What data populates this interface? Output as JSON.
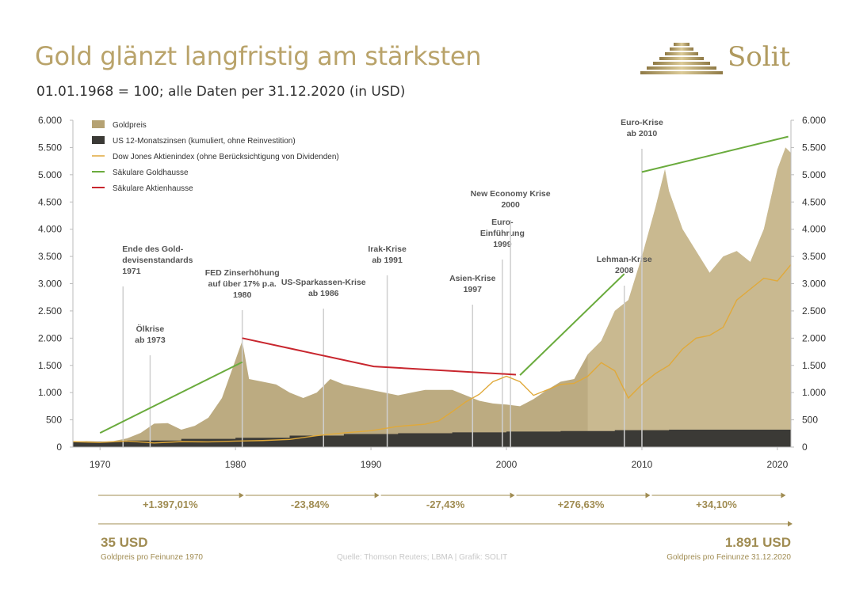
{
  "title": "Gold glänzt langfristig am stärksten",
  "subtitle": "01.01.1968 = 100; alle Daten per 31.12.2020 (in USD)",
  "brand": {
    "name": "Solit",
    "logo_icon": "stepped-pyramid-icon"
  },
  "colors": {
    "gold_area": "#b5a273",
    "gold_area_light": "#d4c59c",
    "us_rates": "#3b3a36",
    "dow_jones": "#e0a93a",
    "goldhausse": "#6aab3d",
    "aktienhausse": "#c8262e",
    "gridline": "#c9c9c9",
    "accent_text": "#a08c52"
  },
  "chart_data": {
    "type": "area",
    "xlim": [
      1968,
      2021
    ],
    "ylim": [
      0,
      6000
    ],
    "x_ticks": [
      1970,
      1980,
      1990,
      2000,
      2010,
      2020
    ],
    "x_tick_labels": [
      "1970",
      "1980",
      "1990",
      "2000",
      "2010",
      "2020"
    ],
    "y_ticks": [
      0,
      500,
      1000,
      1500,
      2000,
      2500,
      3000,
      3500,
      4000,
      4500,
      5000,
      5500,
      6000
    ],
    "y_tick_labels": [
      "0",
      "500",
      "1.000",
      "1.500",
      "2.000",
      "2.500",
      "3.000",
      "3.500",
      "4.000",
      "4.500",
      "5.000",
      "5.500",
      "6.000"
    ],
    "legend": [
      {
        "label": "Goldpreis",
        "kind": "area"
      },
      {
        "label": "US 12-Monatszinsen (kumuliert, ohne Reinvestition)",
        "kind": "bar"
      },
      {
        "label": "Dow Jones Aktienindex (ohne Berücksichtigung von Dividenden)",
        "kind": "line"
      },
      {
        "label": "Säkulare Goldhausse",
        "kind": "line"
      },
      {
        "label": "Säkulare Aktienhausse",
        "kind": "line"
      }
    ],
    "series": [
      {
        "name": "Goldpreis",
        "type": "area",
        "x": [
          1968,
          1969,
          1970,
          1971,
          1972,
          1973,
          1974,
          1975,
          1976,
          1977,
          1978,
          1979,
          1980,
          1980.5,
          1981,
          1982,
          1983,
          1984,
          1985,
          1986,
          1987,
          1988,
          1989,
          1990,
          1991,
          1992,
          1993,
          1994,
          1995,
          1996,
          1997,
          1998,
          1999,
          2000,
          2001,
          2002,
          2003,
          2004,
          2005,
          2006,
          2007,
          2008,
          2009,
          2010,
          2011,
          2011.7,
          2012,
          2013,
          2014,
          2015,
          2016,
          2017,
          2018,
          2019,
          2020,
          2020.6,
          2021
        ],
        "values": [
          100,
          110,
          100,
          110,
          160,
          260,
          430,
          440,
          320,
          390,
          540,
          900,
          1600,
          1950,
          1250,
          1200,
          1150,
          1000,
          900,
          1000,
          1250,
          1150,
          1100,
          1050,
          1000,
          950,
          1000,
          1050,
          1050,
          1050,
          950,
          850,
          800,
          780,
          750,
          880,
          1050,
          1200,
          1250,
          1700,
          1950,
          2500,
          2700,
          3500,
          4400,
          5100,
          4700,
          4000,
          3600,
          3200,
          3500,
          3600,
          3400,
          4000,
          5100,
          5500,
          5400
        ]
      },
      {
        "name": "US 12-Monatszinsen (kumuliert, ohne Reinvestition)",
        "type": "area",
        "x": [
          1968,
          1972,
          1976,
          1980,
          1984,
          1988,
          1992,
          1996,
          2000,
          2004,
          2008,
          2012,
          2016,
          2021
        ],
        "values": [
          100,
          120,
          150,
          170,
          210,
          240,
          255,
          270,
          285,
          295,
          310,
          320,
          320,
          320
        ]
      },
      {
        "name": "Dow Jones Aktienindex (ohne Berücksichtigung von Dividenden)",
        "type": "line",
        "x": [
          1968,
          1970,
          1972,
          1974,
          1976,
          1978,
          1980,
          1982,
          1984,
          1986,
          1988,
          1990,
          1992,
          1994,
          1995,
          1996,
          1997,
          1998,
          1999,
          2000,
          2001,
          2002,
          2003,
          2004,
          2005,
          2006,
          2007,
          2008,
          2009,
          2010,
          2011,
          2012,
          2013,
          2014,
          2015,
          2016,
          2017,
          2018,
          2019,
          2020,
          2021
        ],
        "values": [
          100,
          85,
          110,
          75,
          100,
          95,
          110,
          120,
          140,
          210,
          260,
          300,
          380,
          420,
          480,
          650,
          830,
          970,
          1200,
          1300,
          1200,
          950,
          1050,
          1150,
          1170,
          1300,
          1550,
          1400,
          900,
          1150,
          1350,
          1500,
          1800,
          2000,
          2050,
          2200,
          2700,
          2900,
          3100,
          3050,
          3350
        ]
      }
    ],
    "trend_lines": [
      {
        "name": "Säkulare Goldhausse",
        "points": [
          [
            1970,
            260
          ],
          [
            1980.5,
            1560
          ]
        ]
      },
      {
        "name": "Säkulare Goldhausse",
        "points": [
          [
            2001,
            1320
          ],
          [
            2008.7,
            3180
          ]
        ]
      },
      {
        "name": "Säkulare Goldhausse",
        "points": [
          [
            2010,
            5050
          ],
          [
            2020.8,
            5700
          ]
        ]
      },
      {
        "name": "Säkulare Aktienhausse",
        "points": [
          [
            1980.5,
            2000
          ],
          [
            1990.2,
            1480
          ],
          [
            2000.7,
            1330
          ]
        ]
      }
    ],
    "events": [
      {
        "year": 1971.7,
        "label": "Ende des Gold-\ndevisenstandards\n1971",
        "anchor": "start"
      },
      {
        "year": 1973.7,
        "label": "Ölkrise\nab 1973",
        "anchor": "middle"
      },
      {
        "year": 1980.5,
        "label": "FED Zinserhöhung\nauf über 17% p.a.\n1980",
        "anchor": "middle"
      },
      {
        "year": 1986.5,
        "label": "US-Sparkassen-Krise\nab 1986",
        "anchor": "middle"
      },
      {
        "year": 1991.2,
        "label": "Irak-Krise\nab 1991",
        "anchor": "middle"
      },
      {
        "year": 1997.5,
        "label": "Asien-Krise\n1997",
        "anchor": "middle"
      },
      {
        "year": 1999.7,
        "label": "Euro-\nEinführung\n1999",
        "anchor": "middle"
      },
      {
        "year": 2000.3,
        "label": "New Economy Krise\n2000",
        "anchor": "middle"
      },
      {
        "year": 2008.7,
        "label": "Lehman-Krise\n2008",
        "anchor": "middle"
      },
      {
        "year": 2010,
        "label": "Euro-Krise\nab 2010",
        "anchor": "middle"
      }
    ],
    "period_changes": [
      {
        "from": 1968,
        "to": 1980.5,
        "label": "+1.397,01%"
      },
      {
        "from": 1980.5,
        "to": 1990.5,
        "label": "-23,84%"
      },
      {
        "from": 1990.5,
        "to": 2000.5,
        "label": "-27,43%"
      },
      {
        "from": 2000.5,
        "to": 2010.5,
        "label": "+276,63%"
      },
      {
        "from": 2010.5,
        "to": 2020.5,
        "label": "+34,10%"
      }
    ]
  },
  "bottom": {
    "left_value": "35 USD",
    "left_caption": "Goldpreis pro Feinunze 1970",
    "right_value": "1.891 USD",
    "right_caption": "Goldpreis pro Feinunze 31.12.2020",
    "source": "Quelle: Thomson Reuters; LBMA | Grafik: SOLIT"
  }
}
